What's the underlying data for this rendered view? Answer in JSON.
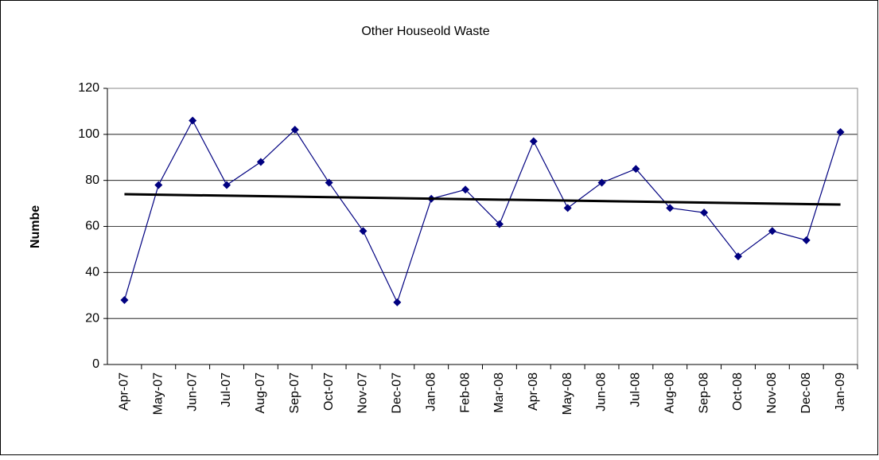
{
  "chart_data": {
    "type": "line",
    "title": "Other Houseold Waste",
    "y_label": "Numbe",
    "categories": [
      "Apr-07",
      "May-07",
      "Jun-07",
      "Jul-07",
      "Aug-07",
      "Sep-07",
      "Oct-07",
      "Nov-07",
      "Dec-07",
      "Jan-08",
      "Feb-08",
      "Mar-08",
      "Apr-08",
      "May-08",
      "Jun-08",
      "Jul-08",
      "Aug-08",
      "Sep-08",
      "Oct-08",
      "Nov-08",
      "Dec-08",
      "Jan-09"
    ],
    "series": [
      {
        "color": "#000080",
        "values": [
          28,
          78,
          106,
          78,
          88,
          102,
          79,
          58,
          27,
          72,
          76,
          61,
          97,
          68,
          79,
          85,
          68,
          66,
          47,
          58,
          54,
          101
        ]
      }
    ],
    "trendline": {
      "color": "#000000",
      "values": [
        74,
        69.5
      ]
    },
    "ylim": [
      0,
      120
    ],
    "yticks": [
      0,
      20,
      40,
      60,
      80,
      100,
      120
    ],
    "grid": true
  }
}
